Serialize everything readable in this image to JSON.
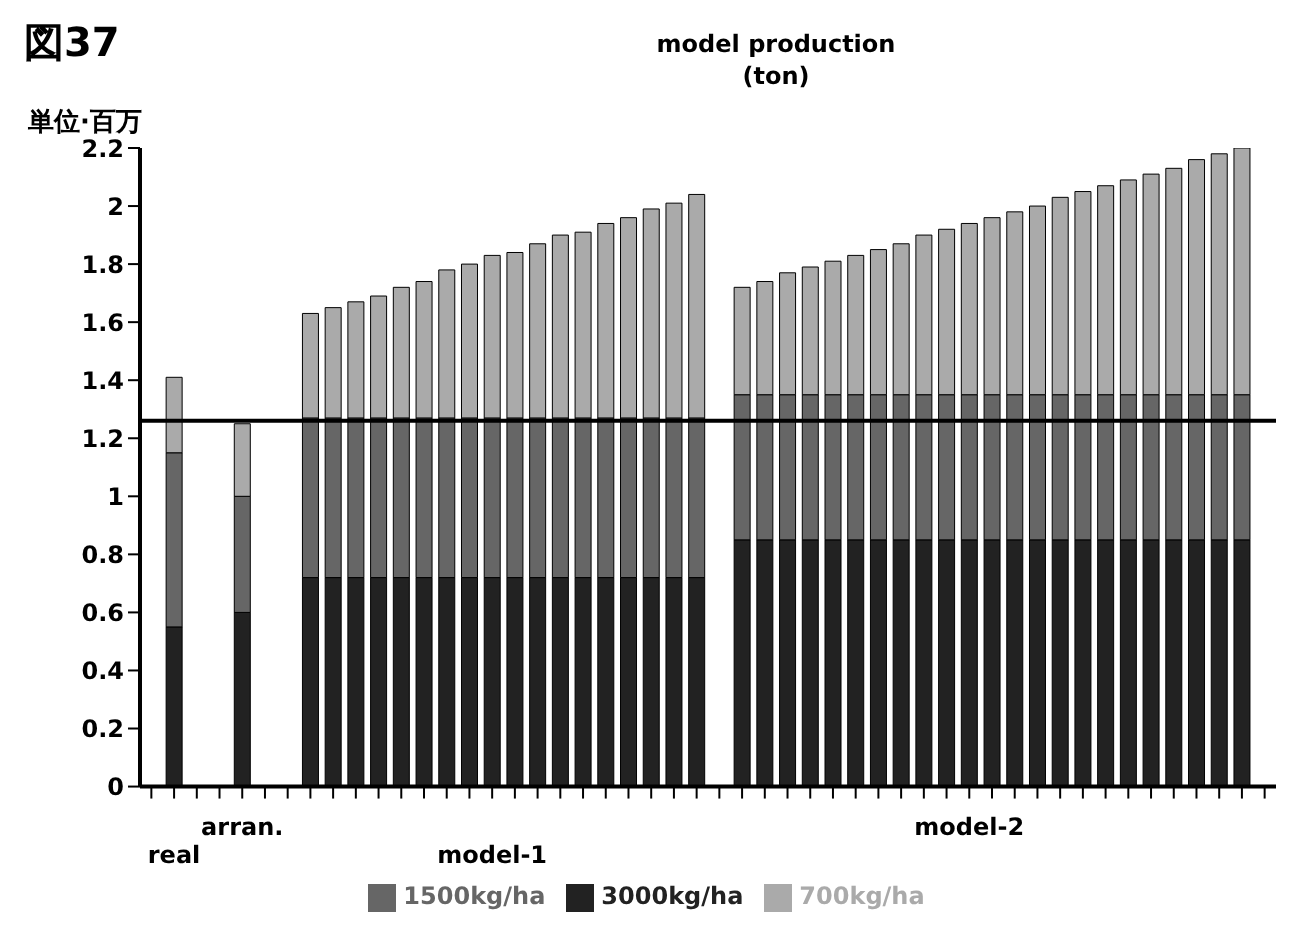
{
  "chart_data": {
    "type": "bar",
    "title": "model production",
    "subtitle": "(ton)",
    "ylabel": "単位·百万",
    "annotations": [
      "図37"
    ],
    "categories": [
      null,
      "real",
      null,
      null,
      "arran.",
      null,
      null,
      null,
      null,
      null,
      null,
      null,
      null,
      null,
      null,
      "model-1",
      null,
      null,
      null,
      null,
      null,
      null,
      null,
      null,
      null,
      null,
      null,
      null,
      null,
      null,
      null,
      null,
      null,
      null,
      null,
      null,
      "model-2",
      null,
      null,
      null,
      null,
      null,
      null,
      null,
      null,
      null,
      null,
      null,
      null,
      null
    ],
    "stacked": true,
    "ylim": [
      0,
      2.2
    ],
    "yticks": [
      0,
      0.2,
      0.4,
      0.6,
      0.8,
      1,
      1.2,
      1.4,
      1.6,
      1.8,
      2,
      2.2
    ],
    "legend": "bottom",
    "ref_lines": [
      {
        "axis": "y",
        "value": 1.26,
        "color": "#000000"
      }
    ],
    "series": [
      {
        "name": "3000kg/ha",
        "color": "#222222",
        "values": [
          null,
          0.55,
          null,
          null,
          0.6,
          null,
          null,
          0.72,
          0.72,
          0.72,
          0.72,
          0.72,
          0.72,
          0.72,
          0.72,
          0.72,
          0.72,
          0.72,
          0.72,
          0.72,
          0.72,
          0.72,
          0.72,
          0.72,
          0.72,
          null,
          0.85,
          0.85,
          0.85,
          0.85,
          0.85,
          0.85,
          0.85,
          0.85,
          0.85,
          0.85,
          0.85,
          0.85,
          0.85,
          0.85,
          0.85,
          0.85,
          0.85,
          0.85,
          0.85,
          0.85,
          0.85,
          0.85,
          0.85,
          null
        ]
      },
      {
        "name": "1500kg/ha",
        "color": "#666666",
        "values": [
          null,
          0.6,
          null,
          null,
          0.4,
          null,
          null,
          0.55,
          0.55,
          0.55,
          0.55,
          0.55,
          0.55,
          0.55,
          0.55,
          0.55,
          0.55,
          0.55,
          0.55,
          0.55,
          0.55,
          0.55,
          0.55,
          0.55,
          0.55,
          null,
          0.5,
          0.5,
          0.5,
          0.5,
          0.5,
          0.5,
          0.5,
          0.5,
          0.5,
          0.5,
          0.5,
          0.5,
          0.5,
          0.5,
          0.5,
          0.5,
          0.5,
          0.5,
          0.5,
          0.5,
          0.5,
          0.5,
          0.5,
          null
        ]
      },
      {
        "name": "700kg/ha",
        "color": "#aaaaaa",
        "values": [
          null,
          0.26,
          null,
          null,
          0.25,
          null,
          null,
          0.36,
          0.38,
          0.4,
          0.42,
          0.45,
          0.47,
          0.51,
          0.53,
          0.56,
          0.57,
          0.6,
          0.63,
          0.64,
          0.67,
          0.69,
          0.72,
          0.74,
          0.77,
          null,
          0.37,
          0.39,
          0.42,
          0.44,
          0.46,
          0.48,
          0.5,
          0.52,
          0.55,
          0.57,
          0.59,
          0.61,
          0.63,
          0.65,
          0.68,
          0.7,
          0.72,
          0.74,
          0.76,
          0.78,
          0.81,
          0.83,
          0.85,
          null
        ]
      }
    ]
  }
}
